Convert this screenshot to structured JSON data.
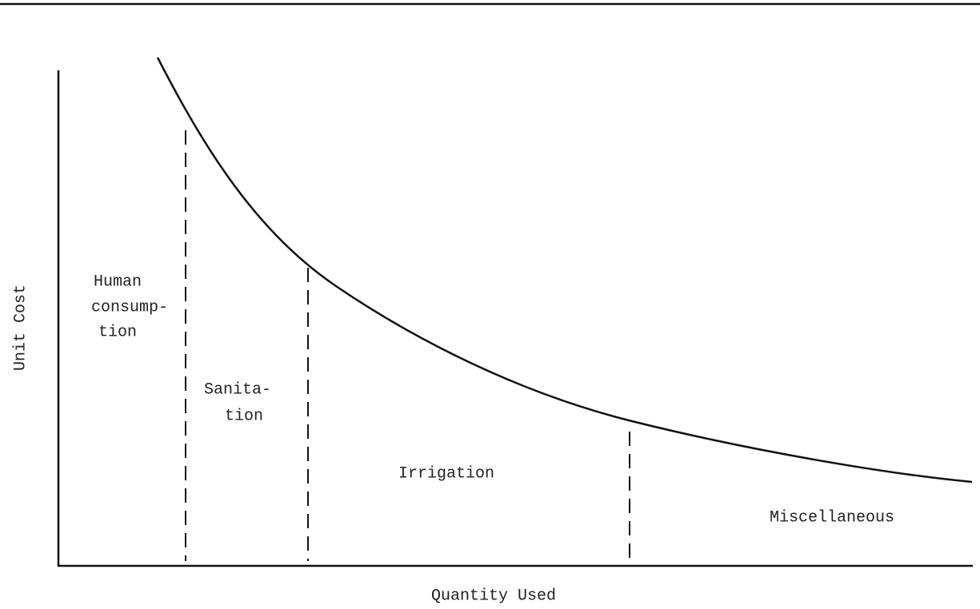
{
  "axes": {
    "y_label": "Unit Cost",
    "x_label": "Quantity Used"
  },
  "regions": [
    {
      "lines": [
        "Human",
        "consump-",
        "tion"
      ]
    },
    {
      "lines": [
        "Sanita-",
        "tion"
      ]
    },
    {
      "lines": [
        "Irrigation"
      ]
    },
    {
      "lines": [
        "Miscellaneous"
      ]
    }
  ]
}
